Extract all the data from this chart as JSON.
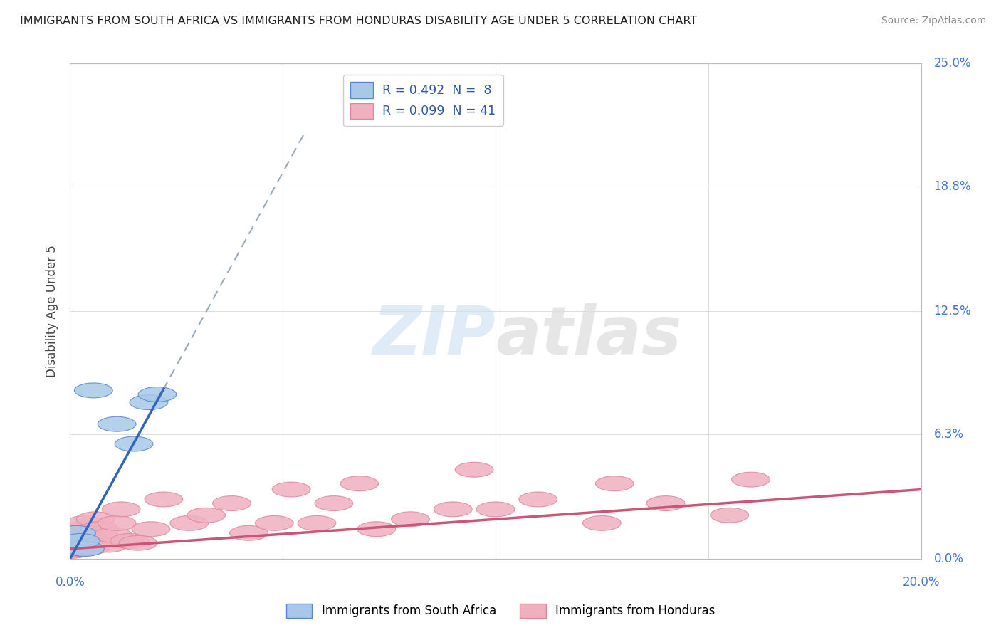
{
  "title": "IMMIGRANTS FROM SOUTH AFRICA VS IMMIGRANTS FROM HONDURAS DISABILITY AGE UNDER 5 CORRELATION CHART",
  "source": "Source: ZipAtlas.com",
  "ylabel_label": "Disability Age Under 5",
  "legend_line1": "R = 0.492  N =  8",
  "legend_line2": "R = 0.099  N = 41",
  "legend_label1": "Immigrants from South Africa",
  "legend_label2": "Immigrants from Honduras",
  "blue_scatter_color": "#a8c8e8",
  "pink_scatter_color": "#f0b0c0",
  "blue_line_color": "#3366bb",
  "blue_dash_color": "#99aabb",
  "pink_line_color": "#cc5577",
  "grid_color": "#dddddd",
  "axis_label_color": "#4477cc",
  "title_color": "#222222",
  "source_color": "#888888",
  "background": "#ffffff",
  "xmax": 20.0,
  "ymax": 25.0,
  "yticks": [
    0.0,
    6.3,
    12.5,
    18.8,
    25.0
  ],
  "ytick_labels": [
    "0.0%",
    "6.3%",
    "12.5%",
    "18.8%",
    "25.0%"
  ],
  "blue_x": [
    0.15,
    0.35,
    0.55,
    0.25,
    1.1,
    1.5,
    1.85,
    2.05
  ],
  "blue_y": [
    1.3,
    0.5,
    8.5,
    0.9,
    6.8,
    5.8,
    7.9,
    8.3
  ],
  "pink_x": [
    0.05,
    0.1,
    0.12,
    0.15,
    0.18,
    0.22,
    0.28,
    0.35,
    0.42,
    0.5,
    0.6,
    0.7,
    0.8,
    0.9,
    1.0,
    1.1,
    1.2,
    1.4,
    1.6,
    1.9,
    2.2,
    2.8,
    3.2,
    3.8,
    4.2,
    4.8,
    5.2,
    5.8,
    6.2,
    6.8,
    7.2,
    8.0,
    9.0,
    9.5,
    10.0,
    11.0,
    12.5,
    12.8,
    14.0,
    15.5,
    16.0
  ],
  "pink_y": [
    0.4,
    0.8,
    0.5,
    1.0,
    0.5,
    1.2,
    1.5,
    1.8,
    0.8,
    0.6,
    2.0,
    1.5,
    1.0,
    0.7,
    1.2,
    1.8,
    2.5,
    0.9,
    0.8,
    1.5,
    3.0,
    1.8,
    2.2,
    2.8,
    1.3,
    1.8,
    3.5,
    1.8,
    2.8,
    3.8,
    1.5,
    2.0,
    2.5,
    4.5,
    2.5,
    3.0,
    1.8,
    3.8,
    2.8,
    2.2,
    4.0
  ],
  "blue_slope": 3.9,
  "blue_intercept": 0.0,
  "pink_slope": 0.15,
  "pink_intercept": 0.5,
  "watermark_text": "ZIPatlas",
  "watermark_color": "#c5ddf0",
  "watermark_alpha": 0.4
}
